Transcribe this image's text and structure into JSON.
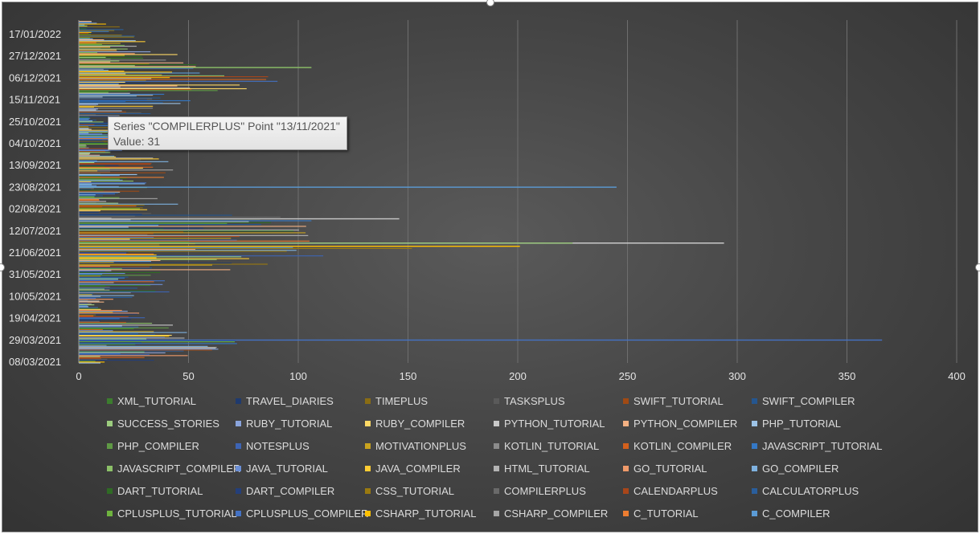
{
  "chart_data": {
    "type": "bar",
    "orientation": "horizontal",
    "title": "",
    "xlabel": "",
    "ylabel": "",
    "xlim": [
      0,
      400
    ],
    "x_ticks": [
      0,
      50,
      100,
      150,
      200,
      250,
      300,
      350,
      400
    ],
    "grid": "vertical",
    "legend_placement": "bottom",
    "date_tick_labels": [
      "17/01/2022",
      "27/12/2021",
      "06/12/2021",
      "15/11/2021",
      "25/10/2021",
      "04/10/2021",
      "13/09/2021",
      "23/08/2021",
      "02/08/2021",
      "12/07/2021",
      "21/06/2021",
      "31/05/2021",
      "10/05/2021",
      "19/04/2021",
      "29/03/2021",
      "08/03/2021"
    ],
    "legend": [
      {
        "name": "XML_TUTORIAL",
        "color": "#3c7d2e"
      },
      {
        "name": "TRAVEL_DIARIES",
        "color": "#1f3a6e"
      },
      {
        "name": "TIMEPLUS",
        "color": "#8a6d14"
      },
      {
        "name": "TASKSPLUS",
        "color": "#5a5a5a"
      },
      {
        "name": "SWIFT_TUTORIAL",
        "color": "#a04a14"
      },
      {
        "name": "SWIFT_COMPILER",
        "color": "#25568f"
      },
      {
        "name": "SUCCESS_STORIES",
        "color": "#9ccc7e"
      },
      {
        "name": "RUBY_TUTORIAL",
        "color": "#8aa4dc"
      },
      {
        "name": "RUBY_COMPILER",
        "color": "#ffd966"
      },
      {
        "name": "PYTHON_TUTORIAL",
        "color": "#c9c9c9"
      },
      {
        "name": "PYTHON_COMPILER",
        "color": "#f4b183"
      },
      {
        "name": "PHP_TUTORIAL",
        "color": "#9dc3e6"
      },
      {
        "name": "PHP_COMPILER",
        "color": "#5f9945"
      },
      {
        "name": "NOTESPLUS",
        "color": "#3d64b4"
      },
      {
        "name": "MOTIVATIONPLUS",
        "color": "#c9a31e"
      },
      {
        "name": "KOTLIN_TUTORIAL",
        "color": "#8c8c8c"
      },
      {
        "name": "KOTLIN_COMPILER",
        "color": "#d3601c"
      },
      {
        "name": "JAVASCRIPT_TUTORIAL",
        "color": "#3478c6"
      },
      {
        "name": "JAVASCRIPT_COMPILER",
        "color": "#8cc068"
      },
      {
        "name": "JAVA_TUTORIAL",
        "color": "#6b8fd6"
      },
      {
        "name": "JAVA_COMPILER",
        "color": "#ffcc33"
      },
      {
        "name": "HTML_TUTORIAL",
        "color": "#b4b4b4"
      },
      {
        "name": "GO_TUTORIAL",
        "color": "#f09a6a"
      },
      {
        "name": "GO_COMPILER",
        "color": "#7fb2e0"
      },
      {
        "name": "DART_TUTORIAL",
        "color": "#2f6b24"
      },
      {
        "name": "DART_COMPILER",
        "color": "#243f7a"
      },
      {
        "name": "CSS_TUTORIAL",
        "color": "#9a7a10"
      },
      {
        "name": "COMPILERPLUS",
        "color": "#6a6a6a"
      },
      {
        "name": "CALENDARPLUS",
        "color": "#a8461a"
      },
      {
        "name": "CALCULATORPLUS",
        "color": "#2a5e9c"
      },
      {
        "name": "CPLUSPLUS_TUTORIAL",
        "color": "#6fb33f"
      },
      {
        "name": "CPLUSPLUS_COMPILER",
        "color": "#4472c4"
      },
      {
        "name": "CSHARP_TUTORIAL",
        "color": "#ffc000"
      },
      {
        "name": "CSHARP_COMPILER",
        "color": "#a5a5a5"
      },
      {
        "name": "C_TUTORIAL",
        "color": "#ed7d31"
      },
      {
        "name": "C_COMPILER",
        "color": "#5b9bd5"
      }
    ],
    "highlights": [
      {
        "date": "23/08/2021",
        "value": 245
      },
      {
        "date": "29/03/2021",
        "value": 366
      },
      {
        "date": "21/06/2021",
        "value": 294
      },
      {
        "date": "21/06/2021",
        "value": 225
      },
      {
        "date": "21/06/2021",
        "value": 201
      },
      {
        "date": "12/07/2021",
        "value": 146
      },
      {
        "date": "06/12/2021",
        "value": 106
      }
    ]
  },
  "tooltip": {
    "line1": "Series \"COMPILERPLUS\" Point \"13/11/2021\"",
    "line2": "Value: 31"
  }
}
